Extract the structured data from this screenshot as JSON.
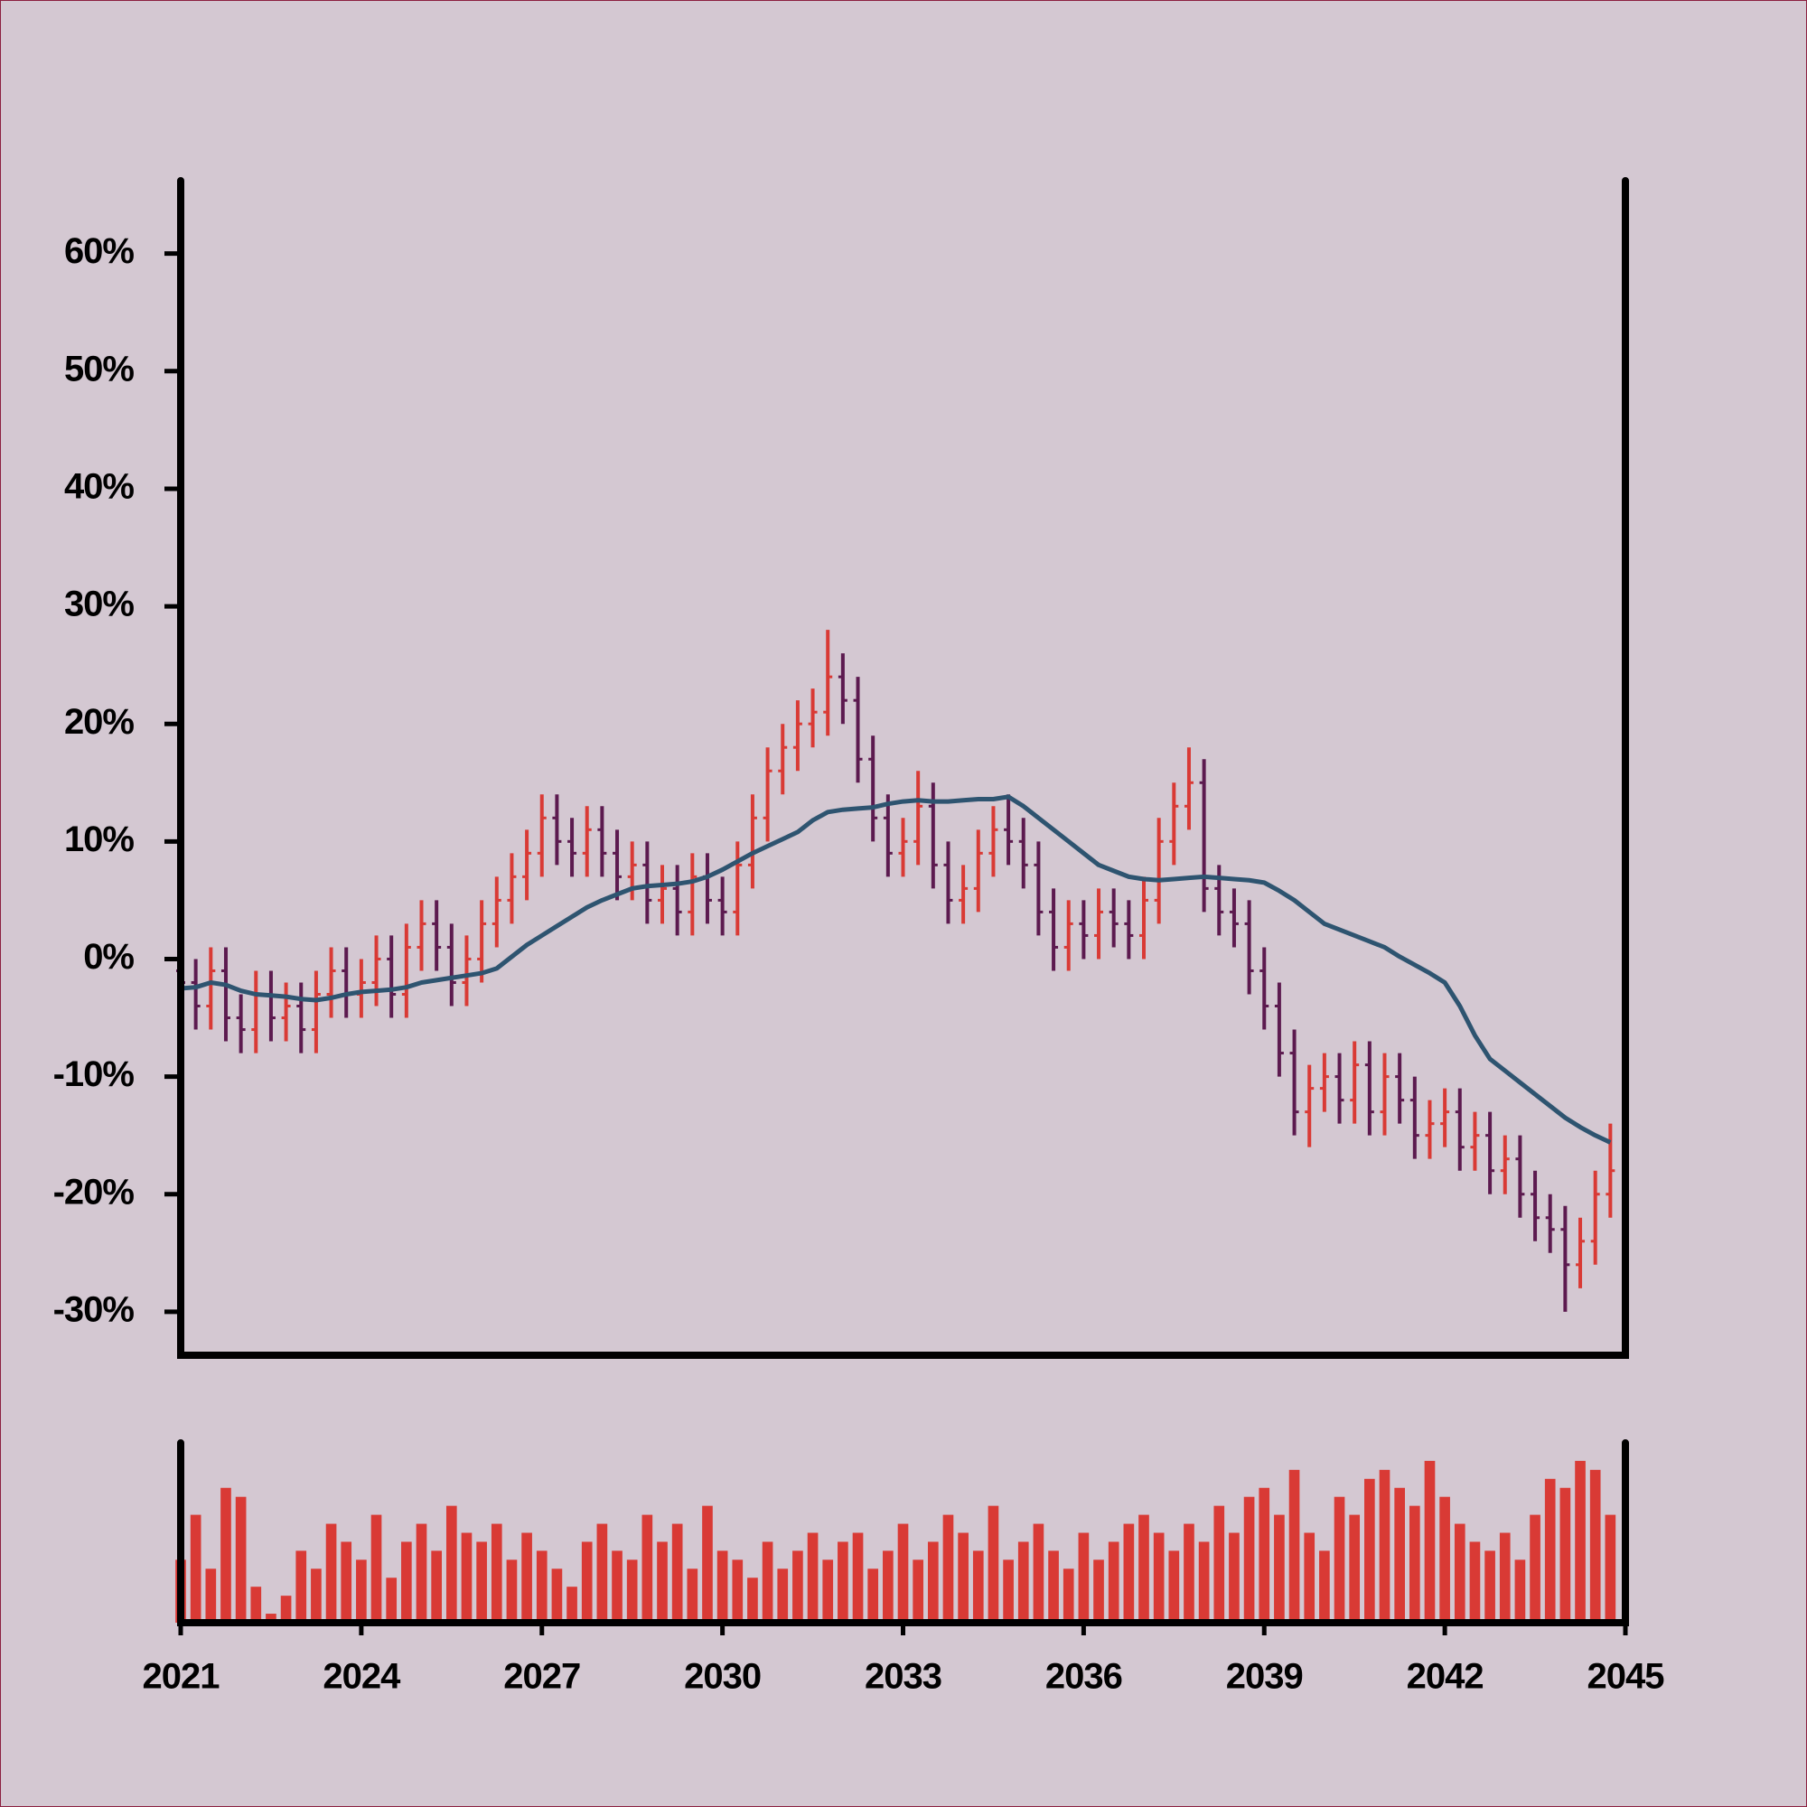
{
  "chart_data": {
    "type": "ohlc",
    "x": [
      2021,
      2021.25,
      2021.5,
      2021.75,
      2022,
      2022.25,
      2022.5,
      2022.75,
      2023,
      2023.25,
      2023.5,
      2023.75,
      2024,
      2024.25,
      2024.5,
      2024.75,
      2025,
      2025.25,
      2025.5,
      2025.75,
      2026,
      2026.25,
      2026.5,
      2026.75,
      2027,
      2027.25,
      2027.5,
      2027.75,
      2028,
      2028.25,
      2028.5,
      2028.75,
      2029,
      2029.25,
      2029.5,
      2029.75,
      2030,
      2030.25,
      2030.5,
      2030.75,
      2031,
      2031.25,
      2031.5,
      2031.75,
      2032,
      2032.25,
      2032.5,
      2032.75,
      2033,
      2033.25,
      2033.5,
      2033.75,
      2034,
      2034.25,
      2034.5,
      2034.75,
      2035,
      2035.25,
      2035.5,
      2035.75,
      2036,
      2036.25,
      2036.5,
      2036.75,
      2037,
      2037.25,
      2037.5,
      2037.75,
      2038,
      2038.25,
      2038.5,
      2038.75,
      2039,
      2039.25,
      2039.5,
      2039.75,
      2040,
      2040.25,
      2040.5,
      2040.75,
      2041,
      2041.25,
      2041.5,
      2041.75,
      2042,
      2042.25,
      2042.5,
      2042.75,
      2043,
      2043.25,
      2043.5,
      2043.75,
      2044,
      2044.25,
      2044.5,
      2044.75
    ],
    "open": [
      -1,
      -2,
      -4,
      -1,
      -5,
      -6,
      -3,
      -5,
      -4,
      -6,
      -3,
      -1,
      -3,
      -2,
      0,
      -3,
      1,
      3,
      1,
      -2,
      0,
      3,
      5,
      7,
      9,
      12,
      10,
      9,
      11,
      9,
      7,
      8,
      5,
      6,
      4,
      7,
      5,
      4,
      8,
      12,
      16,
      18,
      20,
      21,
      24,
      22,
      17,
      12,
      9,
      10,
      13,
      8,
      5,
      6,
      9,
      11,
      10,
      8,
      4,
      1,
      3,
      2,
      4,
      3,
      2,
      5,
      10,
      13,
      15,
      6,
      4,
      3,
      -1,
      -4,
      -8,
      -13,
      -11,
      -10,
      -12,
      -9,
      -13,
      -10,
      -12,
      -15,
      -14,
      -13,
      -16,
      -15,
      -18,
      -17,
      -20,
      -22,
      -23,
      -26,
      -24,
      -20
    ],
    "high": [
      1,
      0,
      1,
      1,
      -3,
      -1,
      -1,
      -2,
      -2,
      -1,
      1,
      1,
      0,
      2,
      2,
      3,
      5,
      5,
      3,
      2,
      5,
      7,
      9,
      11,
      14,
      14,
      12,
      13,
      13,
      11,
      10,
      10,
      8,
      8,
      9,
      9,
      7,
      10,
      14,
      18,
      20,
      22,
      23,
      28,
      26,
      24,
      19,
      14,
      12,
      16,
      15,
      10,
      8,
      11,
      13,
      14,
      12,
      10,
      6,
      5,
      5,
      6,
      6,
      5,
      7,
      12,
      15,
      18,
      17,
      8,
      6,
      5,
      1,
      -2,
      -6,
      -9,
      -8,
      -8,
      -7,
      -7,
      -8,
      -8,
      -10,
      -12,
      -11,
      -11,
      -13,
      -13,
      -15,
      -15,
      -18,
      -20,
      -21,
      -22,
      -18,
      -14
    ],
    "low": [
      -4,
      -6,
      -6,
      -7,
      -8,
      -8,
      -7,
      -7,
      -8,
      -8,
      -5,
      -5,
      -5,
      -4,
      -5,
      -5,
      -1,
      -1,
      -4,
      -4,
      -2,
      1,
      3,
      5,
      7,
      8,
      7,
      7,
      7,
      5,
      5,
      3,
      3,
      2,
      2,
      3,
      2,
      2,
      6,
      10,
      14,
      16,
      18,
      19,
      20,
      15,
      10,
      7,
      7,
      8,
      6,
      3,
      3,
      4,
      7,
      8,
      6,
      2,
      -1,
      -1,
      0,
      0,
      1,
      0,
      0,
      3,
      8,
      11,
      4,
      2,
      1,
      -3,
      -6,
      -10,
      -15,
      -16,
      -13,
      -14,
      -14,
      -15,
      -15,
      -14,
      -17,
      -17,
      -16,
      -18,
      -18,
      -20,
      -20,
      -22,
      -24,
      -25,
      -30,
      -28,
      -26,
      -22
    ],
    "close": [
      -2,
      -4,
      -1,
      -5,
      -6,
      -3,
      -5,
      -4,
      -6,
      -3,
      -1,
      -3,
      -2,
      0,
      -3,
      1,
      3,
      1,
      -2,
      0,
      3,
      5,
      7,
      9,
      12,
      10,
      9,
      11,
      9,
      7,
      8,
      5,
      6,
      4,
      7,
      5,
      4,
      8,
      12,
      16,
      18,
      20,
      21,
      24,
      22,
      17,
      12,
      9,
      10,
      13,
      8,
      5,
      6,
      9,
      11,
      10,
      8,
      4,
      1,
      3,
      2,
      4,
      3,
      2,
      5,
      10,
      13,
      15,
      6,
      4,
      3,
      -1,
      -4,
      -8,
      -13,
      -11,
      -10,
      -12,
      -9,
      -13,
      -10,
      -12,
      -15,
      -14,
      -13,
      -16,
      -15,
      -18,
      -17,
      -20,
      -22,
      -23,
      -26,
      -24,
      -20,
      -18
    ],
    "up_color": "#d93a35",
    "down_color": "#5c1a4f",
    "moving_average": {
      "color": "#2e5470",
      "values": [
        -2.5,
        -2.4,
        -2.0,
        -2.2,
        -2.7,
        -3.0,
        -3.1,
        -3.2,
        -3.4,
        -3.5,
        -3.3,
        -3.0,
        -2.8,
        -2.7,
        -2.6,
        -2.4,
        -2.0,
        -1.8,
        -1.6,
        -1.4,
        -1.2,
        -0.8,
        0.2,
        1.2,
        2.0,
        2.8,
        3.6,
        4.4,
        5.0,
        5.5,
        6.0,
        6.2,
        6.3,
        6.4,
        6.6,
        7.0,
        7.6,
        8.3,
        9.0,
        9.6,
        10.2,
        10.8,
        11.8,
        12.5,
        12.7,
        12.8,
        12.9,
        13.2,
        13.4,
        13.5,
        13.4,
        13.4,
        13.5,
        13.6,
        13.6,
        13.8,
        13.0,
        12.0,
        11.0,
        10.0,
        9.0,
        8.0,
        7.5,
        7.0,
        6.8,
        6.7,
        6.8,
        6.9,
        7.0,
        6.9,
        6.8,
        6.7,
        6.5,
        5.8,
        5.0,
        4.0,
        3.0,
        2.5,
        2.0,
        1.5,
        1.0,
        0.2,
        -0.5,
        -1.2,
        -2.0,
        -4.0,
        -6.5,
        -8.5,
        -9.5,
        -10.5,
        -11.5,
        -12.5,
        -13.5,
        -14.3,
        -15.0,
        -15.6
      ]
    },
    "volume": {
      "color": "#d93a35",
      "ylim": [
        0,
        100
      ],
      "values": [
        35,
        60,
        30,
        75,
        70,
        20,
        5,
        15,
        40,
        30,
        55,
        45,
        35,
        60,
        25,
        45,
        55,
        40,
        65,
        50,
        45,
        55,
        35,
        50,
        40,
        30,
        20,
        45,
        55,
        40,
        35,
        60,
        45,
        55,
        30,
        65,
        40,
        35,
        25,
        45,
        30,
        40,
        50,
        35,
        45,
        50,
        30,
        40,
        55,
        35,
        45,
        60,
        50,
        40,
        65,
        35,
        45,
        55,
        40,
        30,
        50,
        35,
        45,
        55,
        60,
        50,
        40,
        55,
        45,
        65,
        50,
        70,
        75,
        60,
        85,
        50,
        40,
        70,
        60,
        80,
        85,
        75,
        65,
        90,
        70,
        55,
        45,
        40,
        50,
        35,
        60,
        80,
        75,
        90,
        85,
        60
      ]
    },
    "xlim": [
      2021,
      2045
    ],
    "xticks": [
      2021,
      2024,
      2027,
      2030,
      2033,
      2036,
      2039,
      2042,
      2045
    ],
    "ylim": [
      -33.7,
      66.2
    ],
    "yticks": [
      {
        "value": -30,
        "label": "-30%"
      },
      {
        "value": -20,
        "label": "-20%"
      },
      {
        "value": -10,
        "label": "-10%"
      },
      {
        "value": 0,
        "label": "0%"
      },
      {
        "value": 10,
        "label": "10%"
      },
      {
        "value": 20,
        "label": "20%"
      },
      {
        "value": 30,
        "label": "30%"
      },
      {
        "value": 40,
        "label": "40%"
      },
      {
        "value": 50,
        "label": "50%"
      },
      {
        "value": 60,
        "label": "60%"
      }
    ]
  }
}
